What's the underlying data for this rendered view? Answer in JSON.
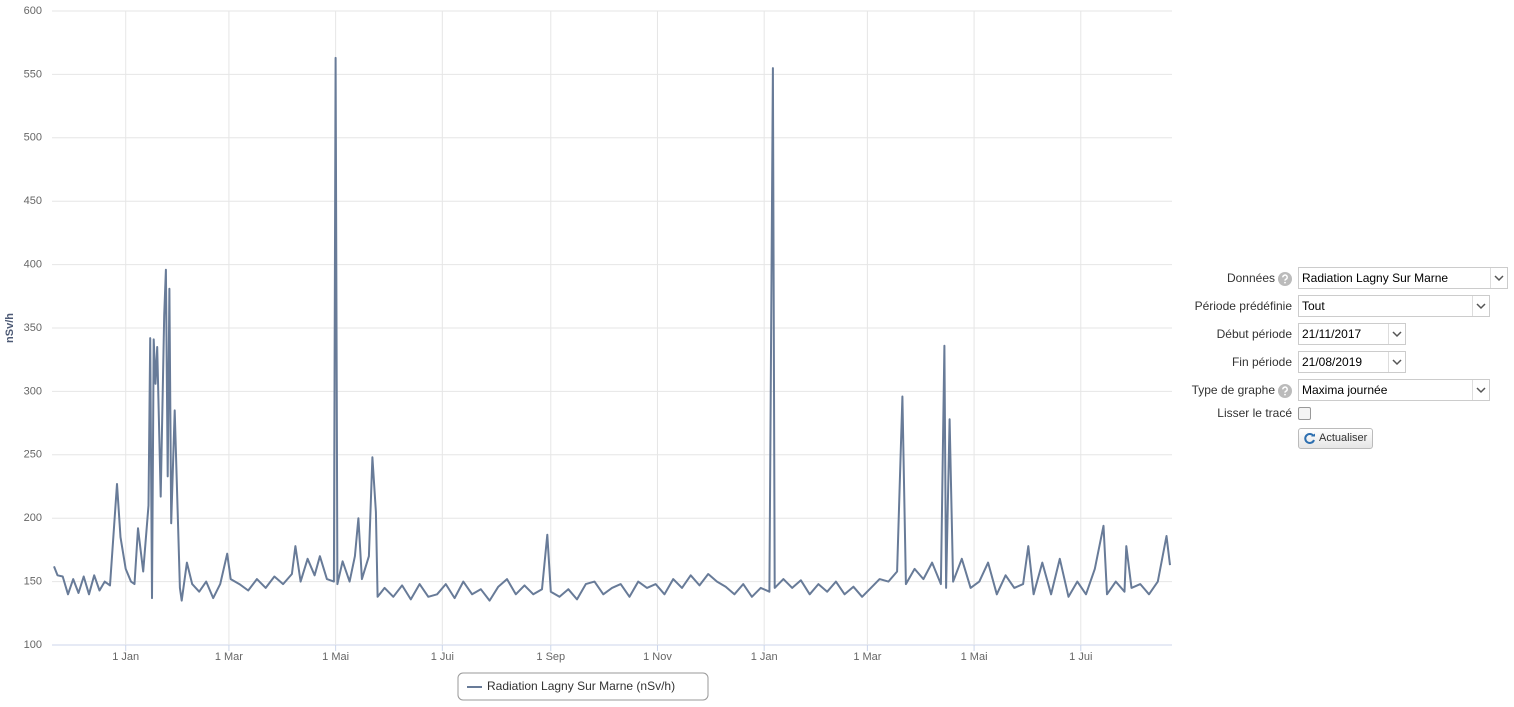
{
  "chart_data": {
    "type": "line",
    "ylabel": "nSv/h",
    "xlim": [
      "2017-11-21",
      "2019-08-21"
    ],
    "ylim": [
      100,
      600
    ],
    "yticks": [
      100,
      150,
      200,
      250,
      300,
      350,
      400,
      450,
      500,
      550,
      600
    ],
    "xticks": [
      {
        "value": "2018-01-01",
        "label": "1 Jan"
      },
      {
        "value": "2018-03-01",
        "label": "1 Mar"
      },
      {
        "value": "2018-05-01",
        "label": "1 Mai"
      },
      {
        "value": "2018-07-01",
        "label": "1 Jui"
      },
      {
        "value": "2018-09-01",
        "label": "1 Sep"
      },
      {
        "value": "2018-11-01",
        "label": "1 Nov"
      },
      {
        "value": "2019-01-01",
        "label": "1 Jan"
      },
      {
        "value": "2019-03-01",
        "label": "1 Mar"
      },
      {
        "value": "2019-05-01",
        "label": "1 Mai"
      },
      {
        "value": "2019-07-01",
        "label": "1 Jui"
      }
    ],
    "grid": true,
    "x": [
      "2017-11-21",
      "2017-11-23",
      "2017-11-26",
      "2017-11-29",
      "2017-12-02",
      "2017-12-05",
      "2017-12-08",
      "2017-12-11",
      "2017-12-14",
      "2017-12-17",
      "2017-12-20",
      "2017-12-23",
      "2017-12-27",
      "2017-12-29",
      "2018-01-01",
      "2018-01-04",
      "2018-01-06",
      "2018-01-08",
      "2018-01-11",
      "2018-01-14",
      "2018-01-15",
      "2018-01-16",
      "2018-01-17",
      "2018-01-18",
      "2018-01-19",
      "2018-01-21",
      "2018-01-23",
      "2018-01-24",
      "2018-01-25",
      "2018-01-26",
      "2018-01-27",
      "2018-01-29",
      "2018-02-01",
      "2018-02-02",
      "2018-02-05",
      "2018-02-08",
      "2018-02-12",
      "2018-02-16",
      "2018-02-20",
      "2018-02-24",
      "2018-02-28",
      "2018-03-02",
      "2018-03-07",
      "2018-03-12",
      "2018-03-17",
      "2018-03-22",
      "2018-03-27",
      "2018-04-01",
      "2018-04-06",
      "2018-04-08",
      "2018-04-11",
      "2018-04-15",
      "2018-04-19",
      "2018-04-22",
      "2018-04-26",
      "2018-04-30",
      "2018-05-01",
      "2018-05-02",
      "2018-05-05",
      "2018-05-09",
      "2018-05-12",
      "2018-05-14",
      "2018-05-16",
      "2018-05-20",
      "2018-05-22",
      "2018-05-24",
      "2018-05-25",
      "2018-05-29",
      "2018-06-03",
      "2018-06-08",
      "2018-06-13",
      "2018-06-18",
      "2018-06-23",
      "2018-06-28",
      "2018-07-03",
      "2018-07-08",
      "2018-07-13",
      "2018-07-18",
      "2018-07-23",
      "2018-07-28",
      "2018-08-02",
      "2018-08-07",
      "2018-08-12",
      "2018-08-17",
      "2018-08-22",
      "2018-08-27",
      "2018-08-30",
      "2018-09-01",
      "2018-09-06",
      "2018-09-11",
      "2018-09-16",
      "2018-09-21",
      "2018-09-26",
      "2018-10-01",
      "2018-10-06",
      "2018-10-11",
      "2018-10-16",
      "2018-10-21",
      "2018-10-26",
      "2018-10-31",
      "2018-11-05",
      "2018-11-10",
      "2018-11-15",
      "2018-11-20",
      "2018-11-25",
      "2018-11-30",
      "2018-12-05",
      "2018-12-10",
      "2018-12-15",
      "2018-12-20",
      "2018-12-25",
      "2018-12-30",
      "2019-01-04",
      "2019-01-06",
      "2019-01-07",
      "2019-01-12",
      "2019-01-17",
      "2019-01-22",
      "2019-01-27",
      "2019-02-01",
      "2019-02-06",
      "2019-02-11",
      "2019-02-16",
      "2019-02-21",
      "2019-02-26",
      "2019-03-03",
      "2019-03-08",
      "2019-03-13",
      "2019-03-18",
      "2019-03-21",
      "2019-03-23",
      "2019-03-28",
      "2019-04-02",
      "2019-04-07",
      "2019-04-12",
      "2019-04-14",
      "2019-04-15",
      "2019-04-17",
      "2019-04-19",
      "2019-04-24",
      "2019-04-29",
      "2019-05-04",
      "2019-05-09",
      "2019-05-14",
      "2019-05-19",
      "2019-05-24",
      "2019-05-29",
      "2019-06-01",
      "2019-06-04",
      "2019-06-09",
      "2019-06-14",
      "2019-06-19",
      "2019-06-24",
      "2019-06-29",
      "2019-07-04",
      "2019-07-09",
      "2019-07-14",
      "2019-07-16",
      "2019-07-21",
      "2019-07-26",
      "2019-07-27",
      "2019-07-30",
      "2019-08-04",
      "2019-08-09",
      "2019-08-14",
      "2019-08-19",
      "2019-08-21"
    ],
    "series": [
      {
        "name": "Radiation Lagny Sur Marne (nSv/h)",
        "color": "#687b98",
        "values": [
          162,
          155,
          154,
          140,
          152,
          141,
          154,
          140,
          155,
          143,
          150,
          147,
          227,
          185,
          160,
          150,
          148,
          192,
          158,
          210,
          342,
          137,
          341,
          306,
          335,
          217,
          360,
          396,
          233,
          381,
          196,
          285,
          145,
          135,
          165,
          148,
          142,
          150,
          137,
          148,
          172,
          152,
          148,
          143,
          152,
          145,
          154,
          148,
          156,
          178,
          150,
          168,
          155,
          170,
          152,
          150,
          563,
          148,
          166,
          150,
          170,
          200,
          152,
          170,
          248,
          205,
          138,
          145,
          138,
          147,
          136,
          148,
          138,
          140,
          148,
          137,
          150,
          140,
          144,
          135,
          146,
          152,
          140,
          147,
          140,
          144,
          187,
          142,
          138,
          144,
          136,
          148,
          150,
          140,
          145,
          148,
          138,
          150,
          145,
          148,
          140,
          152,
          145,
          155,
          147,
          156,
          150,
          146,
          140,
          148,
          138,
          145,
          142,
          555,
          145,
          152,
          145,
          151,
          140,
          148,
          142,
          150,
          140,
          146,
          138,
          145,
          152,
          150,
          158,
          296,
          148,
          160,
          152,
          165,
          148,
          336,
          145,
          278,
          150,
          168,
          145,
          150,
          165,
          140,
          155,
          145,
          148,
          178,
          140,
          165,
          140,
          168,
          138,
          150,
          140,
          160,
          194,
          140,
          150,
          142,
          178,
          145,
          148,
          140,
          150,
          186,
          163
        ]
      }
    ]
  },
  "form": {
    "rows": [
      {
        "label": "Données",
        "value": "Radiation Lagny Sur Marne"
      },
      {
        "label": "Période prédéfinie",
        "value": "Tout"
      },
      {
        "label": "Début période",
        "value": "21/11/2017"
      },
      {
        "label": "Fin période",
        "value": "21/08/2019"
      },
      {
        "label": "Type de graphe",
        "value": "Maxima journée"
      },
      {
        "label": "Lisser le tracé"
      }
    ],
    "button": "Actualiser"
  }
}
